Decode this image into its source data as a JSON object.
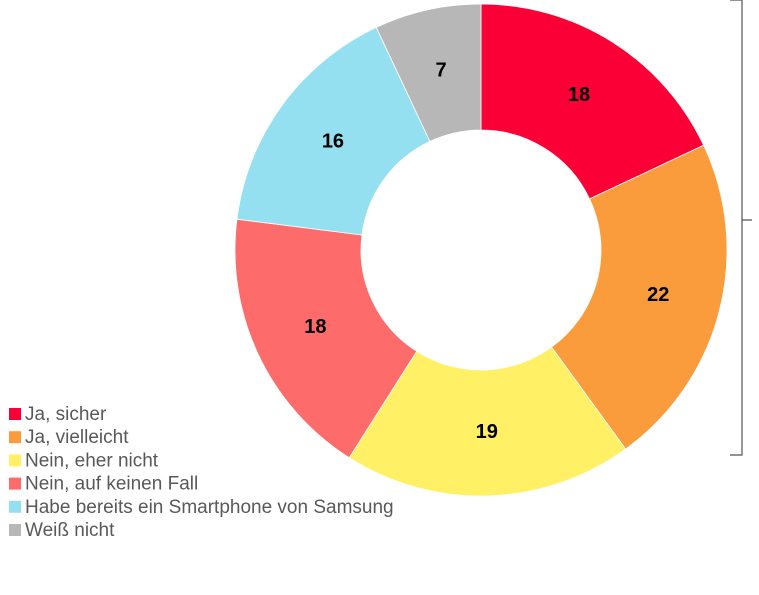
{
  "chart_data": {
    "type": "pie",
    "donut": true,
    "categories": [
      "Ja, sicher",
      "Ja, vielleicht",
      "Nein, eher nicht",
      "Nein, auf keinen Fall",
      "Habe bereits ein Smartphone von Samsung",
      "Weiß nicht"
    ],
    "values": [
      18,
      22,
      19,
      18,
      16,
      7
    ],
    "colors": [
      "#fb0036",
      "#fa9c3c",
      "#fff066",
      "#fd6b6b",
      "#95e0f0",
      "#b7b7b7"
    ],
    "legend": "bottom-left"
  }
}
